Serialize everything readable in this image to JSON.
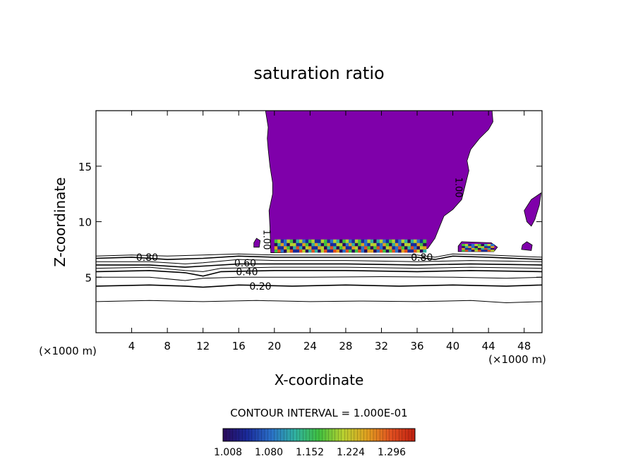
{
  "chart_data": {
    "type": "contour",
    "title": "saturation ratio",
    "xlabel": "X-coordinate",
    "ylabel": "Z-coordinate",
    "x_unit_left": "(×1000 m)",
    "x_unit_right": "(×1000 m)",
    "xlim": [
      0,
      50
    ],
    "ylim": [
      0,
      20
    ],
    "x_ticks": [
      4,
      8,
      12,
      16,
      20,
      24,
      28,
      32,
      36,
      40,
      44,
      48
    ],
    "y_ticks": [
      5,
      10,
      15
    ],
    "contour_levels": [
      0.1,
      0.2,
      0.3,
      0.4,
      0.5,
      0.6,
      0.7,
      0.8,
      0.9,
      1.0
    ],
    "contour_labels": [
      {
        "text": "0.80",
        "x": 4.5,
        "y": 6.8
      },
      {
        "text": "0.60",
        "x": 15.5,
        "y": 6.3
      },
      {
        "text": "0.40",
        "x": 15.7,
        "y": 5.5
      },
      {
        "text": "0.20",
        "x": 17.2,
        "y": 4.2
      },
      {
        "text": "0.80",
        "x": 35.3,
        "y": 6.8
      },
      {
        "text": "1.00",
        "x": 19.2,
        "y": 9.3
      },
      {
        "text": "1.00",
        "x": 40.7,
        "y": 14.0
      }
    ],
    "contour_lines": [
      {
        "level": 0.1,
        "points": [
          [
            0,
            2.8
          ],
          [
            6,
            2.9
          ],
          [
            12,
            2.8
          ],
          [
            18,
            2.9
          ],
          [
            24,
            2.8
          ],
          [
            30,
            2.85
          ],
          [
            36,
            2.8
          ],
          [
            42,
            2.9
          ],
          [
            46,
            2.7
          ],
          [
            50,
            2.8
          ]
        ]
      },
      {
        "level": 0.2,
        "points": [
          [
            0,
            4.2
          ],
          [
            6,
            4.3
          ],
          [
            10,
            4.2
          ],
          [
            12,
            4.1
          ],
          [
            16,
            4.3
          ],
          [
            22,
            4.2
          ],
          [
            28,
            4.3
          ],
          [
            34,
            4.2
          ],
          [
            40,
            4.3
          ],
          [
            46,
            4.2
          ],
          [
            50,
            4.3
          ]
        ]
      },
      {
        "level": 0.3,
        "points": [
          [
            0,
            5.0
          ],
          [
            6,
            5.0
          ],
          [
            10,
            4.7
          ],
          [
            12,
            4.9
          ],
          [
            16,
            5.0
          ],
          [
            24,
            5.0
          ],
          [
            32,
            5.05
          ],
          [
            40,
            5.0
          ],
          [
            46,
            4.9
          ],
          [
            50,
            5.0
          ]
        ]
      },
      {
        "level": 0.4,
        "points": [
          [
            0,
            5.5
          ],
          [
            6,
            5.6
          ],
          [
            10,
            5.4
          ],
          [
            12,
            5.1
          ],
          [
            14,
            5.5
          ],
          [
            20,
            5.6
          ],
          [
            28,
            5.6
          ],
          [
            36,
            5.5
          ],
          [
            42,
            5.6
          ],
          [
            50,
            5.5
          ]
        ]
      },
      {
        "level": 0.5,
        "points": [
          [
            0,
            5.8
          ],
          [
            6,
            5.9
          ],
          [
            10,
            5.6
          ],
          [
            12,
            5.5
          ],
          [
            14,
            5.8
          ],
          [
            20,
            5.9
          ],
          [
            28,
            5.9
          ],
          [
            36,
            5.8
          ],
          [
            42,
            5.9
          ],
          [
            50,
            5.8
          ]
        ]
      },
      {
        "level": 0.6,
        "points": [
          [
            0,
            6.1
          ],
          [
            6,
            6.1
          ],
          [
            10,
            5.9
          ],
          [
            12,
            6.0
          ],
          [
            16,
            6.2
          ],
          [
            20,
            6.2
          ],
          [
            28,
            6.2
          ],
          [
            36,
            6.1
          ],
          [
            42,
            6.2
          ],
          [
            50,
            6.1
          ]
        ]
      },
      {
        "level": 0.7,
        "points": [
          [
            0,
            6.4
          ],
          [
            6,
            6.4
          ],
          [
            10,
            6.2
          ],
          [
            12,
            6.3
          ],
          [
            16,
            6.6
          ],
          [
            20,
            6.5
          ],
          [
            28,
            6.5
          ],
          [
            36,
            6.4
          ],
          [
            42,
            6.5
          ],
          [
            50,
            6.4
          ]
        ]
      },
      {
        "level": 0.8,
        "points": [
          [
            0,
            6.7
          ],
          [
            4,
            6.8
          ],
          [
            8,
            6.6
          ],
          [
            12,
            6.7
          ],
          [
            16,
            6.9
          ],
          [
            20,
            6.8
          ],
          [
            28,
            6.8
          ],
          [
            36,
            6.8
          ],
          [
            38,
            6.6
          ],
          [
            40,
            6.9
          ],
          [
            44,
            6.8
          ],
          [
            50,
            6.6
          ]
        ]
      },
      {
        "level": 0.9,
        "points": [
          [
            0,
            6.9
          ],
          [
            4,
            7.0
          ],
          [
            8,
            6.9
          ],
          [
            12,
            7.0
          ],
          [
            16,
            7.1
          ],
          [
            20,
            7.0
          ],
          [
            28,
            7.0
          ],
          [
            36,
            7.0
          ],
          [
            38,
            6.8
          ],
          [
            40,
            7.1
          ],
          [
            44,
            7.0
          ],
          [
            50,
            6.8
          ]
        ]
      }
    ],
    "saturated_regions": [
      {
        "level": 1.0,
        "outline": [
          [
            19.6,
            7.2
          ],
          [
            19.5,
            9.5
          ],
          [
            19.4,
            11
          ],
          [
            19.8,
            12.5
          ],
          [
            19.8,
            13.5
          ],
          [
            19.5,
            15
          ],
          [
            19.3,
            16.5
          ],
          [
            19.2,
            17.5
          ],
          [
            19.3,
            18.5
          ],
          [
            19.0,
            20
          ],
          [
            44.4,
            20
          ],
          [
            44.5,
            19
          ],
          [
            44.0,
            18.3
          ],
          [
            43.0,
            17.5
          ],
          [
            42.0,
            16.5
          ],
          [
            41.6,
            15.5
          ],
          [
            41.8,
            14.6
          ],
          [
            41.4,
            13.3
          ],
          [
            41.0,
            12.0
          ],
          [
            40.0,
            11.1
          ],
          [
            39.0,
            10.5
          ],
          [
            38.5,
            9.5
          ],
          [
            38.0,
            8.5
          ],
          [
            37.2,
            7.6
          ],
          [
            36.0,
            7.3
          ],
          [
            30,
            7.25
          ],
          [
            24,
            7.3
          ],
          [
            20.5,
            7.2
          ]
        ]
      },
      {
        "level": 1.0,
        "outline": [
          [
            48.0,
            11
          ],
          [
            48.8,
            12.0
          ],
          [
            49.9,
            12.6
          ],
          [
            49.7,
            11.5
          ],
          [
            49.2,
            10.2
          ],
          [
            48.8,
            9.6
          ],
          [
            48.3,
            10.0
          ]
        ]
      },
      {
        "level": 1.0,
        "outline": [
          [
            40.6,
            7.3
          ],
          [
            44.6,
            7.3
          ],
          [
            45.0,
            7.7
          ],
          [
            44.3,
            8.1
          ],
          [
            41.0,
            8.2
          ],
          [
            40.6,
            7.8
          ]
        ]
      },
      {
        "level": 1.0,
        "outline": [
          [
            47.7,
            7.5
          ],
          [
            48.8,
            7.4
          ],
          [
            48.9,
            7.9
          ],
          [
            48.3,
            8.2
          ],
          [
            47.8,
            7.9
          ]
        ]
      },
      {
        "level": 1.0,
        "outline": [
          [
            17.7,
            7.7
          ],
          [
            18.3,
            7.7
          ],
          [
            18.4,
            8.3
          ],
          [
            18.0,
            8.5
          ],
          [
            17.7,
            8.1
          ]
        ]
      }
    ],
    "colorbar": {
      "label": "CONTOUR INTERVAL = 1.000E-01",
      "ticks": [
        "1.008",
        "1.080",
        "1.152",
        "1.224",
        "1.296"
      ],
      "colors": [
        "#2a0a5a",
        "#1a2a9a",
        "#2a70c8",
        "#30b0a0",
        "#40c040",
        "#b8d030",
        "#e0a020",
        "#e05020",
        "#c02010"
      ]
    },
    "colors": {
      "saturated_fill": "#7f00aa",
      "contour_line": "#000000"
    }
  }
}
